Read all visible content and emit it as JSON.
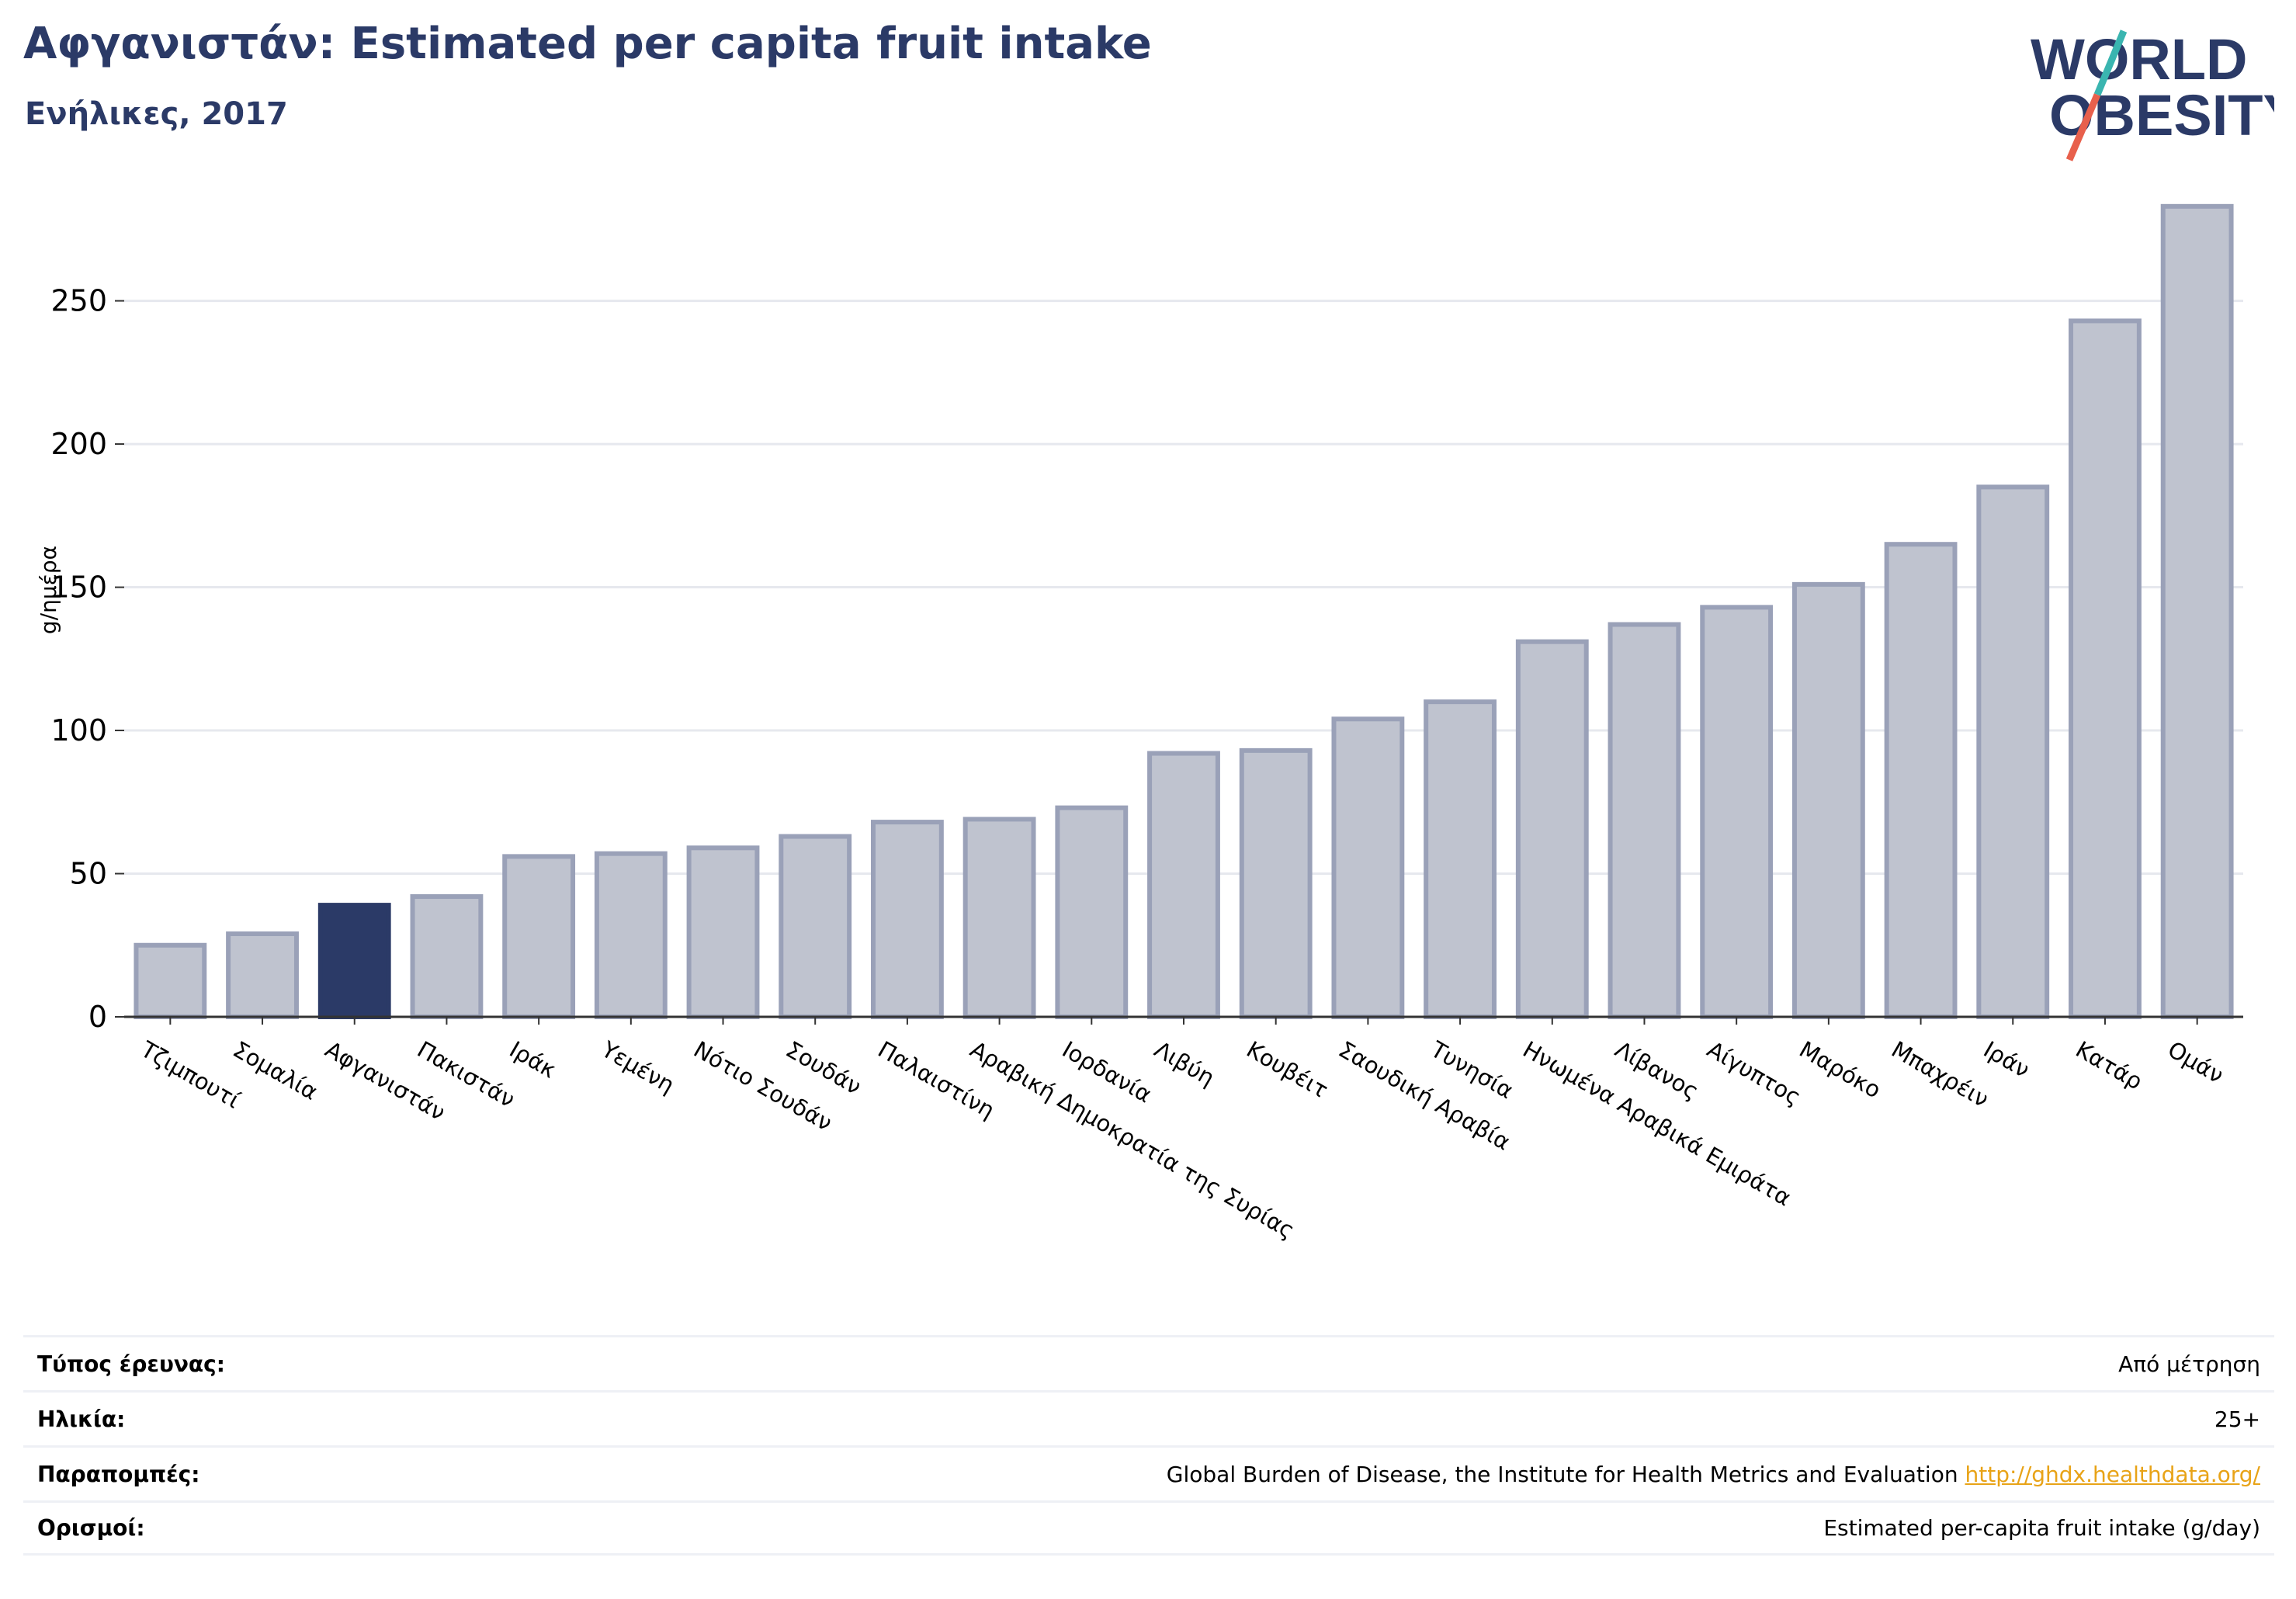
{
  "header": {
    "title": "Αφγανιστάν: Estimated per capita fruit intake",
    "subtitle": "Ενήλικες, 2017"
  },
  "logo": {
    "line1": "WORLD",
    "line2": "OBESITY",
    "colors": {
      "text": "#2b3a67",
      "slash_top": "#3ab5b0",
      "slash_bottom": "#e8604c"
    }
  },
  "chart_data": {
    "type": "bar",
    "ylabel": "g/ημέρα",
    "ylim": [
      0,
      290
    ],
    "yticks": [
      0,
      50,
      100,
      150,
      200,
      250
    ],
    "grid": true,
    "highlight_category": "Αφγανιστάν",
    "colors": {
      "bar": "#bfc3cf",
      "bar_edge": "#9aa1b8",
      "highlight": "#2b3a67",
      "grid": "#e6e8ee",
      "axis": "#333333"
    },
    "categories": [
      "Τζιμπουτί",
      "Σομαλία",
      "Αφγανιστάν",
      "Πακιστάν",
      "Ιράκ",
      "Υεμένη",
      "Νότιο Σουδάν",
      "Σουδάν",
      "Παλαιστίνη",
      "Αραβική Δημοκρατία της Συρίας",
      "Ιορδανία",
      "Λιβύη",
      "Κουβέιτ",
      "Σαουδική Αραβία",
      "Τυνησία",
      "Ηνωμένα Αραβικά Εμιράτα",
      "Λίβανος",
      "Αίγυπτος",
      "Μαρόκο",
      "Μπαχρέιν",
      "Ιράν",
      "Κατάρ",
      "Ομάν"
    ],
    "values": [
      25,
      29,
      39,
      42,
      56,
      57,
      59,
      63,
      68,
      69,
      73,
      92,
      93,
      104,
      110,
      131,
      137,
      143,
      151,
      165,
      185,
      243,
      283
    ]
  },
  "info_table": [
    {
      "label": "Τύπος έρευνας:",
      "value": "Από μέτρηση"
    },
    {
      "label": "Ηλικία:",
      "value": "25+"
    },
    {
      "label": "Παραπομπές:",
      "value": "Global Burden of Disease, the Institute for Health Metrics and Evaluation",
      "link": "http://ghdx.healthdata.org/"
    },
    {
      "label": "Ορισμοί:",
      "value": "Estimated per-capita fruit intake (g/day)"
    }
  ]
}
